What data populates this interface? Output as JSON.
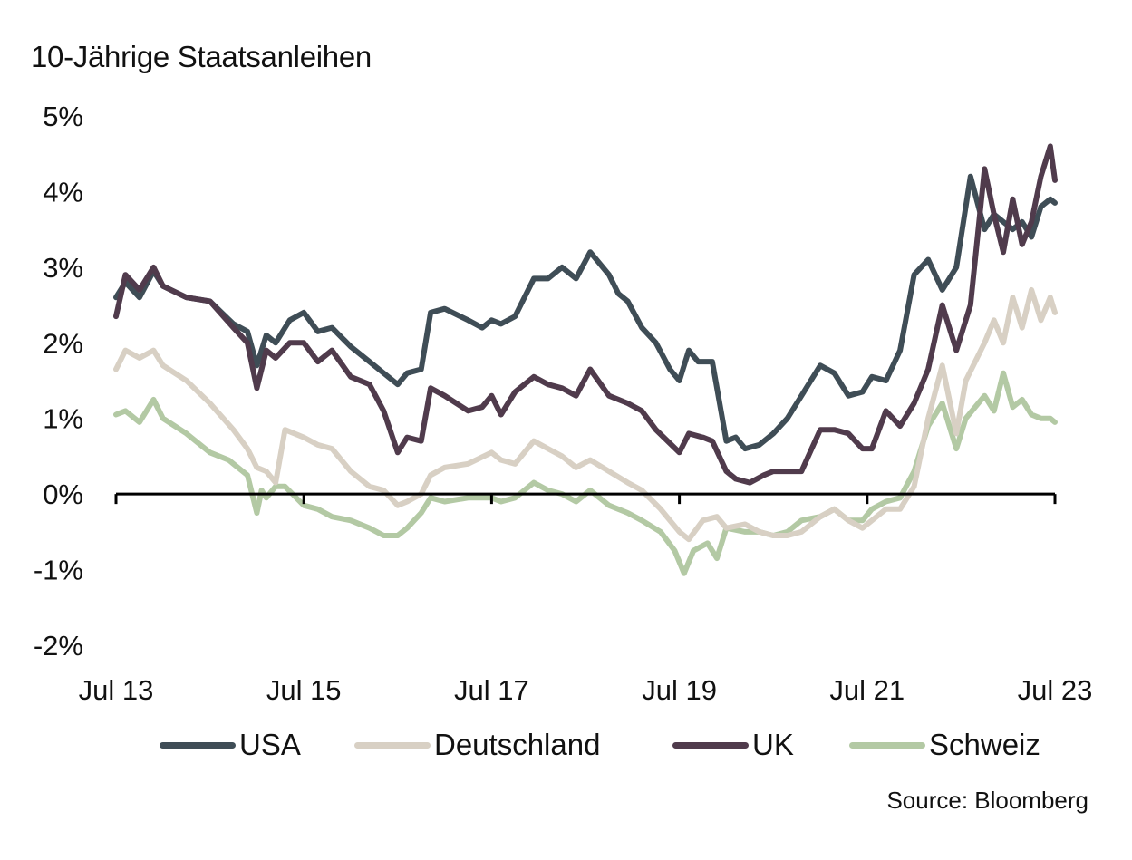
{
  "chart_data": {
    "type": "line",
    "title": "10-Jährige Staatsanleihen",
    "source": "Source: Bloomberg",
    "xlabel": "",
    "ylabel": "",
    "x_range": [
      2013.5,
      2023.5
    ],
    "ylim": [
      -2,
      5
    ],
    "y_ticks": [
      5,
      4,
      3,
      2,
      1,
      0,
      -1,
      -2
    ],
    "y_tick_labels": [
      "5%",
      "4%",
      "3%",
      "2%",
      "1%",
      "0%",
      "-1%",
      "-2%"
    ],
    "x_ticks": [
      2013.5,
      2015.5,
      2017.5,
      2019.5,
      2021.5,
      2023.5
    ],
    "x_tick_labels": [
      "Jul 13",
      "Jul 15",
      "Jul 17",
      "Jul 19",
      "Jul 21",
      "Jul 23"
    ],
    "grid": false,
    "zero_line": true,
    "legend_position": "bottom",
    "series": [
      {
        "name": "USA",
        "color": "#3f4d56",
        "x": [
          2013.5,
          2013.6,
          2013.75,
          2013.9,
          2014.0,
          2014.25,
          2014.5,
          2014.75,
          2014.9,
          2015.0,
          2015.1,
          2015.2,
          2015.35,
          2015.5,
          2015.65,
          2015.8,
          2016.0,
          2016.2,
          2016.35,
          2016.5,
          2016.6,
          2016.75,
          2016.85,
          2017.0,
          2017.25,
          2017.4,
          2017.5,
          2017.6,
          2017.75,
          2017.95,
          2018.1,
          2018.25,
          2018.4,
          2018.55,
          2018.75,
          2018.85,
          2018.95,
          2019.1,
          2019.25,
          2019.4,
          2019.5,
          2019.6,
          2019.7,
          2019.85,
          2020.0,
          2020.1,
          2020.2,
          2020.35,
          2020.5,
          2020.65,
          2020.8,
          2021.0,
          2021.15,
          2021.3,
          2021.45,
          2021.55,
          2021.7,
          2021.85,
          2022.0,
          2022.15,
          2022.3,
          2022.45,
          2022.6,
          2022.75,
          2022.85,
          2022.95,
          2023.05,
          2023.15,
          2023.25,
          2023.35,
          2023.45,
          2023.5
        ],
        "values": [
          2.6,
          2.8,
          2.6,
          2.95,
          2.75,
          2.6,
          2.55,
          2.25,
          2.15,
          1.7,
          2.1,
          2.0,
          2.3,
          2.4,
          2.15,
          2.2,
          1.95,
          1.75,
          1.6,
          1.45,
          1.6,
          1.65,
          2.4,
          2.45,
          2.3,
          2.2,
          2.3,
          2.25,
          2.35,
          2.85,
          2.85,
          3.0,
          2.85,
          3.2,
          2.9,
          2.65,
          2.55,
          2.2,
          2.0,
          1.65,
          1.5,
          1.9,
          1.75,
          1.75,
          0.7,
          0.75,
          0.6,
          0.65,
          0.8,
          1.0,
          1.3,
          1.7,
          1.6,
          1.3,
          1.35,
          1.55,
          1.5,
          1.9,
          2.9,
          3.1,
          2.7,
          3.0,
          4.2,
          3.5,
          3.7,
          3.6,
          3.5,
          3.6,
          3.4,
          3.8,
          3.9,
          3.85
        ]
      },
      {
        "name": "Deutschland",
        "color": "#d8d0c4",
        "x": [
          2013.5,
          2013.6,
          2013.75,
          2013.9,
          2014.0,
          2014.25,
          2014.5,
          2014.75,
          2014.9,
          2015.0,
          2015.1,
          2015.2,
          2015.3,
          2015.5,
          2015.65,
          2015.8,
          2016.0,
          2016.2,
          2016.35,
          2016.5,
          2016.6,
          2016.75,
          2016.85,
          2017.0,
          2017.25,
          2017.5,
          2017.6,
          2017.75,
          2017.95,
          2018.1,
          2018.25,
          2018.4,
          2018.55,
          2018.75,
          2018.95,
          2019.1,
          2019.3,
          2019.5,
          2019.6,
          2019.75,
          2019.9,
          2020.0,
          2020.2,
          2020.35,
          2020.5,
          2020.65,
          2020.8,
          2021.0,
          2021.15,
          2021.3,
          2021.45,
          2021.55,
          2021.7,
          2021.85,
          2022.0,
          2022.15,
          2022.3,
          2022.45,
          2022.55,
          2022.75,
          2022.85,
          2022.95,
          2023.05,
          2023.15,
          2023.25,
          2023.35,
          2023.45,
          2023.5
        ],
        "values": [
          1.65,
          1.9,
          1.8,
          1.9,
          1.7,
          1.5,
          1.2,
          0.85,
          0.6,
          0.35,
          0.3,
          0.15,
          0.85,
          0.75,
          0.65,
          0.6,
          0.3,
          0.1,
          0.05,
          -0.15,
          -0.1,
          0.0,
          0.25,
          0.35,
          0.4,
          0.55,
          0.45,
          0.4,
          0.7,
          0.6,
          0.5,
          0.35,
          0.45,
          0.3,
          0.15,
          0.05,
          -0.2,
          -0.5,
          -0.6,
          -0.35,
          -0.3,
          -0.45,
          -0.4,
          -0.5,
          -0.55,
          -0.55,
          -0.5,
          -0.3,
          -0.2,
          -0.35,
          -0.45,
          -0.35,
          -0.2,
          -0.2,
          0.1,
          1.0,
          1.7,
          0.8,
          1.5,
          2.0,
          2.3,
          2.0,
          2.6,
          2.2,
          2.7,
          2.3,
          2.6,
          2.4
        ]
      },
      {
        "name": "UK",
        "color": "#503b4c",
        "x": [
          2013.5,
          2013.6,
          2013.75,
          2013.9,
          2014.0,
          2014.25,
          2014.5,
          2014.75,
          2014.9,
          2015.0,
          2015.1,
          2015.2,
          2015.35,
          2015.5,
          2015.65,
          2015.8,
          2016.0,
          2016.2,
          2016.35,
          2016.5,
          2016.6,
          2016.75,
          2016.85,
          2017.0,
          2017.25,
          2017.4,
          2017.5,
          2017.6,
          2017.75,
          2017.95,
          2018.1,
          2018.25,
          2018.4,
          2018.55,
          2018.75,
          2018.95,
          2019.1,
          2019.25,
          2019.5,
          2019.6,
          2019.75,
          2019.85,
          2020.0,
          2020.1,
          2020.25,
          2020.4,
          2020.5,
          2020.65,
          2020.8,
          2021.0,
          2021.15,
          2021.3,
          2021.45,
          2021.55,
          2021.7,
          2021.85,
          2022.0,
          2022.15,
          2022.3,
          2022.45,
          2022.6,
          2022.75,
          2022.85,
          2022.95,
          2023.05,
          2023.15,
          2023.25,
          2023.35,
          2023.45,
          2023.5
        ],
        "values": [
          2.35,
          2.9,
          2.7,
          3.0,
          2.75,
          2.6,
          2.55,
          2.2,
          2.0,
          1.4,
          1.9,
          1.8,
          2.0,
          2.0,
          1.75,
          1.9,
          1.55,
          1.45,
          1.1,
          0.55,
          0.75,
          0.7,
          1.4,
          1.3,
          1.1,
          1.15,
          1.3,
          1.05,
          1.35,
          1.55,
          1.45,
          1.4,
          1.3,
          1.65,
          1.3,
          1.2,
          1.1,
          0.85,
          0.55,
          0.8,
          0.75,
          0.7,
          0.3,
          0.2,
          0.15,
          0.25,
          0.3,
          0.3,
          0.3,
          0.85,
          0.85,
          0.8,
          0.6,
          0.6,
          1.1,
          0.9,
          1.2,
          1.65,
          2.5,
          1.9,
          2.5,
          4.3,
          3.7,
          3.2,
          3.9,
          3.3,
          3.6,
          4.2,
          4.6,
          4.15
        ]
      },
      {
        "name": "Schweiz",
        "color": "#b3c9a4",
        "x": [
          2013.5,
          2013.6,
          2013.75,
          2013.9,
          2014.0,
          2014.25,
          2014.5,
          2014.7,
          2014.9,
          2015.0,
          2015.05,
          2015.1,
          2015.2,
          2015.3,
          2015.5,
          2015.65,
          2015.8,
          2016.0,
          2016.2,
          2016.35,
          2016.5,
          2016.6,
          2016.75,
          2016.85,
          2017.0,
          2017.25,
          2017.5,
          2017.6,
          2017.75,
          2017.95,
          2018.1,
          2018.25,
          2018.4,
          2018.55,
          2018.75,
          2018.95,
          2019.1,
          2019.3,
          2019.45,
          2019.55,
          2019.65,
          2019.8,
          2019.9,
          2020.0,
          2020.2,
          2020.35,
          2020.5,
          2020.65,
          2020.8,
          2021.0,
          2021.15,
          2021.3,
          2021.45,
          2021.55,
          2021.7,
          2021.85,
          2022.0,
          2022.15,
          2022.3,
          2022.45,
          2022.55,
          2022.75,
          2022.85,
          2022.95,
          2023.05,
          2023.15,
          2023.25,
          2023.35,
          2023.45,
          2023.5
        ],
        "values": [
          1.05,
          1.1,
          0.95,
          1.25,
          1.0,
          0.8,
          0.55,
          0.45,
          0.25,
          -0.25,
          0.05,
          -0.05,
          0.1,
          0.1,
          -0.15,
          -0.2,
          -0.3,
          -0.35,
          -0.45,
          -0.55,
          -0.55,
          -0.45,
          -0.25,
          -0.05,
          -0.1,
          -0.05,
          -0.05,
          -0.1,
          -0.05,
          0.15,
          0.05,
          0.0,
          -0.1,
          0.05,
          -0.15,
          -0.25,
          -0.35,
          -0.5,
          -0.75,
          -1.05,
          -0.75,
          -0.65,
          -0.85,
          -0.45,
          -0.5,
          -0.5,
          -0.55,
          -0.5,
          -0.35,
          -0.3,
          -0.2,
          -0.35,
          -0.35,
          -0.2,
          -0.1,
          -0.05,
          0.3,
          0.9,
          1.2,
          0.6,
          1.0,
          1.3,
          1.1,
          1.6,
          1.15,
          1.25,
          1.05,
          1.0,
          1.0,
          0.95
        ]
      }
    ]
  }
}
